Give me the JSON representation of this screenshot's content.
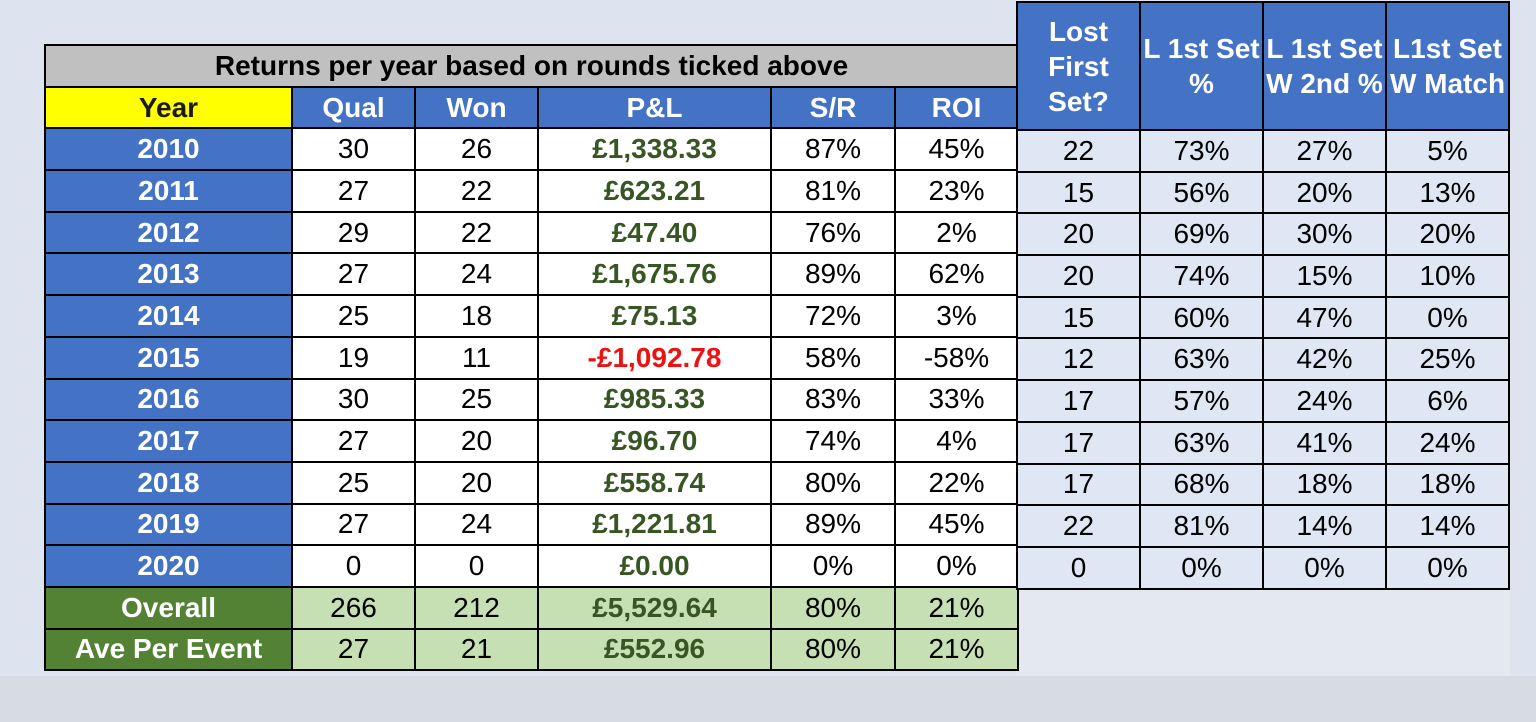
{
  "returns_table": {
    "title": "Returns per year based on rounds ticked above",
    "headers": {
      "year": "Year",
      "qual": "Qual",
      "won": "Won",
      "pl": "P&L",
      "sr": "S/R",
      "roi": "ROI"
    },
    "rows": [
      {
        "year": "2010",
        "qual": "30",
        "won": "26",
        "pl": "£1,338.33",
        "sr": "87%",
        "roi": "45%"
      },
      {
        "year": "2011",
        "qual": "27",
        "won": "22",
        "pl": "£623.21",
        "sr": "81%",
        "roi": "23%"
      },
      {
        "year": "2012",
        "qual": "29",
        "won": "22",
        "pl": "£47.40",
        "sr": "76%",
        "roi": "2%"
      },
      {
        "year": "2013",
        "qual": "27",
        "won": "24",
        "pl": "£1,675.76",
        "sr": "89%",
        "roi": "62%"
      },
      {
        "year": "2014",
        "qual": "25",
        "won": "18",
        "pl": "£75.13",
        "sr": "72%",
        "roi": "3%"
      },
      {
        "year": "2015",
        "qual": "19",
        "won": "11",
        "pl": "-£1,092.78",
        "sr": "58%",
        "roi": "-58%"
      },
      {
        "year": "2016",
        "qual": "30",
        "won": "25",
        "pl": "£985.33",
        "sr": "83%",
        "roi": "33%"
      },
      {
        "year": "2017",
        "qual": "27",
        "won": "20",
        "pl": "£96.70",
        "sr": "74%",
        "roi": "4%"
      },
      {
        "year": "2018",
        "qual": "25",
        "won": "20",
        "pl": "£558.74",
        "sr": "80%",
        "roi": "22%"
      },
      {
        "year": "2019",
        "qual": "27",
        "won": "24",
        "pl": "£1,221.81",
        "sr": "89%",
        "roi": "45%"
      },
      {
        "year": "2020",
        "qual": "0",
        "won": "0",
        "pl": "£0.00",
        "sr": "0%",
        "roi": "0%"
      }
    ],
    "overall": {
      "label": "Overall",
      "qual": "266",
      "won": "212",
      "pl": "£5,529.64",
      "sr": "80%",
      "roi": "21%"
    },
    "average": {
      "label": "Ave Per Event",
      "qual": "27",
      "won": "21",
      "pl": "£552.96",
      "sr": "80%",
      "roi": "21%"
    }
  },
  "first_set_table": {
    "headers": {
      "lost_first": "Lost First Set?",
      "l1_pct": "L 1st Set %",
      "l1_w2": "L 1st Set W 2nd %",
      "l1_match": "L1st Set W Match"
    },
    "rows": [
      {
        "lost_first": "22",
        "l1_pct": "73%",
        "l1_w2": "27%",
        "l1_match": "5%"
      },
      {
        "lost_first": "15",
        "l1_pct": "56%",
        "l1_w2": "20%",
        "l1_match": "13%"
      },
      {
        "lost_first": "20",
        "l1_pct": "69%",
        "l1_w2": "30%",
        "l1_match": "20%"
      },
      {
        "lost_first": "20",
        "l1_pct": "74%",
        "l1_w2": "15%",
        "l1_match": "10%"
      },
      {
        "lost_first": "15",
        "l1_pct": "60%",
        "l1_w2": "47%",
        "l1_match": "0%"
      },
      {
        "lost_first": "12",
        "l1_pct": "63%",
        "l1_w2": "42%",
        "l1_match": "25%"
      },
      {
        "lost_first": "17",
        "l1_pct": "57%",
        "l1_w2": "24%",
        "l1_match": "6%"
      },
      {
        "lost_first": "17",
        "l1_pct": "63%",
        "l1_w2": "41%",
        "l1_match": "24%"
      },
      {
        "lost_first": "17",
        "l1_pct": "68%",
        "l1_w2": "18%",
        "l1_match": "18%"
      },
      {
        "lost_first": "22",
        "l1_pct": "81%",
        "l1_w2": "14%",
        "l1_match": "14%"
      },
      {
        "lost_first": "0",
        "l1_pct": "0%",
        "l1_w2": "0%",
        "l1_match": "0%"
      }
    ]
  },
  "colors": {
    "header_blue": "#4472c4",
    "year_yellow": "#ffff00",
    "title_grey": "#c0c0c0",
    "positive_green_text": "#375623",
    "negative_red_text": "#ee1111",
    "summary_dark_green": "#548235",
    "summary_light_green": "#c6e0b4",
    "right_panel_bg": "#dfe6f4"
  }
}
